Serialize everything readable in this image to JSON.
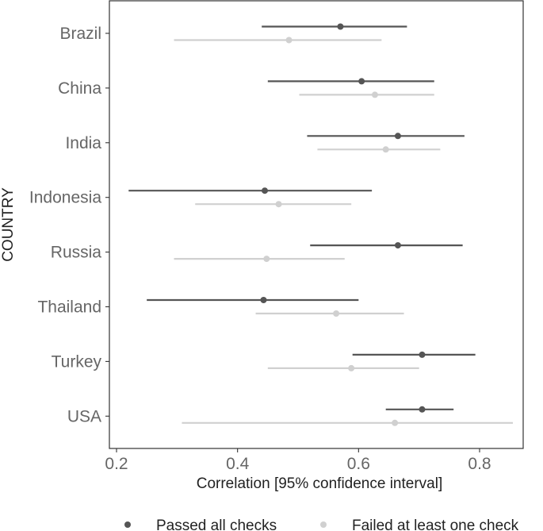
{
  "chart_data": {
    "type": "scatter",
    "subtype": "dot-whisker",
    "xlabel": "Correlation [95% confidence interval]",
    "ylabel": "COUNTRY",
    "xlim": [
      0.2,
      0.85
    ],
    "xticks": [
      "0.2",
      "0.4",
      "0.6",
      "0.8"
    ],
    "grid": false,
    "legend_position": "bottom",
    "categories": [
      "Brazil",
      "China",
      "India",
      "Indonesia",
      "Russia",
      "Thailand",
      "Turkey",
      "USA"
    ],
    "series": [
      {
        "name": "Passed all checks",
        "color": "#555555",
        "estimates": [
          0.57,
          0.605,
          0.665,
          0.445,
          0.665,
          0.443,
          0.705,
          0.705
        ],
        "lower": [
          0.44,
          0.45,
          0.515,
          0.22,
          0.52,
          0.25,
          0.59,
          0.645
        ],
        "upper": [
          0.68,
          0.725,
          0.775,
          0.622,
          0.772,
          0.6,
          0.793,
          0.757
        ]
      },
      {
        "name": "Failed at least one check",
        "color": "#d0d0d0",
        "estimates": [
          0.485,
          0.627,
          0.645,
          0.468,
          0.448,
          0.563,
          0.588,
          0.66
        ],
        "lower": [
          0.295,
          0.502,
          0.532,
          0.33,
          0.295,
          0.43,
          0.45,
          0.308
        ],
        "upper": [
          0.638,
          0.725,
          0.735,
          0.588,
          0.577,
          0.675,
          0.7,
          0.855
        ]
      }
    ]
  }
}
